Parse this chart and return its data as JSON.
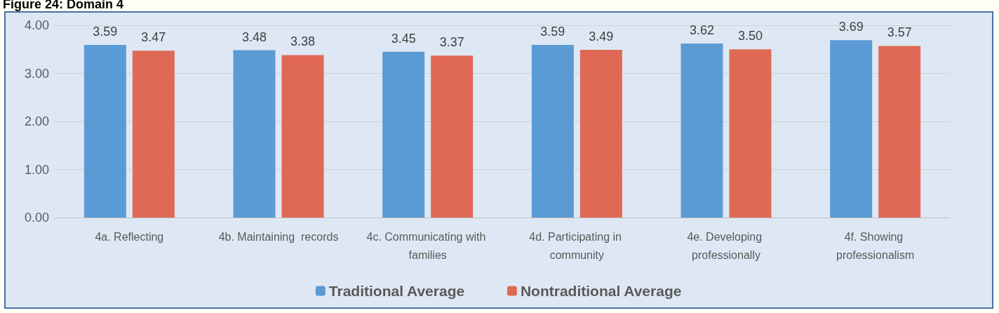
{
  "chart_data": {
    "type": "bar",
    "title": "Figure 24: Domain 4",
    "categories": [
      "4a. Reflecting",
      "4b. Maintaining  records",
      "4c. Communicating with families",
      "4d. Participating in community",
      "4e. Developing professionally",
      "4f. Showing professionalism"
    ],
    "series": [
      {
        "name": "Traditional Average",
        "color": "#5b9bd5",
        "values": [
          3.59,
          3.48,
          3.45,
          3.59,
          3.62,
          3.69
        ],
        "value_labels": [
          "3.59",
          "3.48",
          "3.45",
          "3.59",
          "3.62",
          "3.69"
        ]
      },
      {
        "name": "Nontraditional Average",
        "color": "#e06955",
        "values": [
          3.47,
          3.38,
          3.37,
          3.49,
          3.5,
          3.57
        ],
        "value_labels": [
          "3.47",
          "3.38",
          "3.37",
          "3.49",
          "3.50",
          "3.57"
        ]
      }
    ],
    "ylim": [
      0,
      4
    ],
    "yticks": [
      {
        "value": 0,
        "label": "0.00"
      },
      {
        "value": 1,
        "label": "1.00"
      },
      {
        "value": 2,
        "label": "2.00"
      },
      {
        "value": 3,
        "label": "3.00"
      },
      {
        "value": 4,
        "label": "4.00"
      }
    ],
    "grid": "y",
    "legend": "bottom"
  }
}
